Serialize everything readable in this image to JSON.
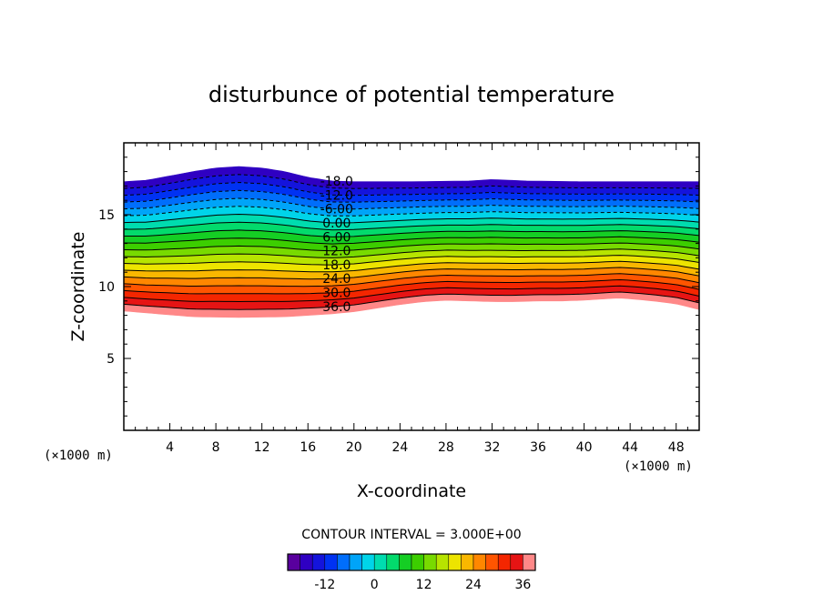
{
  "chart_data": {
    "type": "contour",
    "title": "disturbunce of potential temperature",
    "xlabel": "X-coordinate",
    "ylabel": "Z-coordinate",
    "x_unit": "(×1000 m)",
    "y_unit": "(×1000 m)",
    "xlim": [
      0,
      50
    ],
    "ylim": [
      0,
      20
    ],
    "x_ticks": [
      4,
      8,
      12,
      16,
      20,
      24,
      28,
      32,
      36,
      40,
      44,
      48
    ],
    "x_tick_labels": [
      "4",
      "8",
      "12",
      "16",
      "20",
      "24",
      "28",
      "32",
      "36",
      "40",
      "44",
      "48"
    ],
    "y_ticks": [
      5,
      10,
      15
    ],
    "y_tick_labels": [
      "5",
      "10",
      "15"
    ],
    "contour_interval_label": "CONTOUR INTERVAL = 3.000E+00",
    "contour_interval": 3,
    "contour_levels_min": -18,
    "contour_levels_max": 39,
    "contour_labels": [
      "-18.0",
      "-12.0",
      "-6.00",
      "0.00",
      "6.00",
      "12.0",
      "18.0",
      "24.0",
      "30.0",
      "36.0"
    ],
    "contour_label_values": [
      -18,
      -12,
      -6,
      0,
      6,
      12,
      18,
      24,
      30,
      36
    ],
    "contour_label_x": 18.5,
    "bottom_profile_x": [
      0,
      3,
      6,
      10,
      14,
      18,
      20,
      22,
      24,
      26,
      28,
      30,
      32,
      34,
      36,
      38,
      40,
      42,
      43,
      44,
      46,
      48,
      50
    ],
    "bottom_profile_z": [
      8.3,
      8.1,
      7.9,
      7.85,
      7.9,
      8.1,
      8.25,
      8.5,
      8.75,
      8.95,
      9.05,
      9.0,
      8.95,
      8.95,
      9.0,
      9.0,
      9.05,
      9.15,
      9.2,
      9.15,
      9.0,
      8.8,
      8.4
    ],
    "top_profile_x": [
      0,
      2,
      4,
      6,
      8,
      10,
      12,
      14,
      16,
      18,
      20,
      25,
      30,
      32,
      35,
      40,
      45,
      50
    ],
    "top_profile_z": [
      17.3,
      17.4,
      17.7,
      18.0,
      18.25,
      18.35,
      18.25,
      18.0,
      17.6,
      17.35,
      17.3,
      17.3,
      17.35,
      17.45,
      17.35,
      17.3,
      17.3,
      17.3
    ],
    "colorbar_ticks": [
      -12,
      0,
      12,
      24,
      36
    ],
    "colorbar_tick_labels": [
      "-12",
      "0",
      "12",
      "24",
      "36"
    ],
    "colorbar_range": [
      -21,
      39
    ],
    "grid": false,
    "legend": "bottom"
  }
}
